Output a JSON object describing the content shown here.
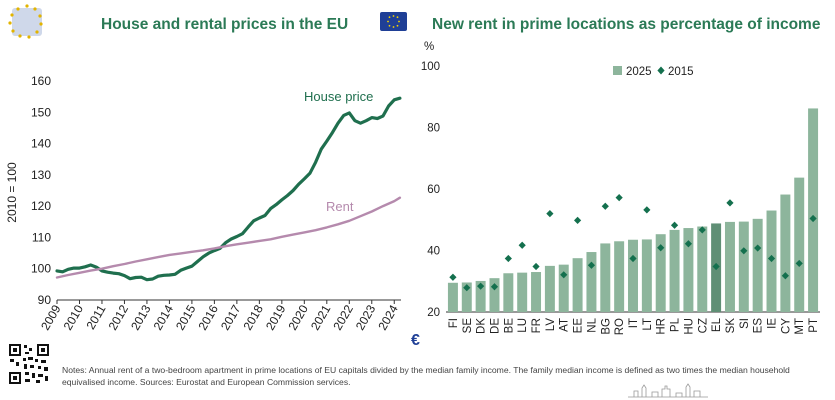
{
  "left_title": "House and rental prices in the EU",
  "right_title": "New rent in prime locations as percentage of income",
  "notes": "Notes: Annual rent of a two-bedroom apartment in prime locations of EU capitals divided by the median family income. The family median income is defined as two times the median household equivalised income. Sources: Eurostat and European Commission services.",
  "euro_symbol": "€",
  "colors": {
    "house": "#1f6f4e",
    "rent": "#b58aad",
    "bar": "#8db59c",
    "bar_highlight": "#5f8f75",
    "diamond": "#14704e",
    "title": "#2b7a56",
    "flag": "#1f3f96"
  },
  "icons": [
    "eu-logo-icon",
    "eu-flag-icon",
    "qr-code-icon",
    "euro-icon",
    "skyline-icon"
  ],
  "chart_data": [
    {
      "type": "line",
      "title": "House and rental prices in the EU",
      "ylabel": "2010 = 100",
      "xlabel": "",
      "ylim": [
        90,
        160
      ],
      "xlim": [
        2009,
        2024.3
      ],
      "grid": false,
      "yticks": [
        "90",
        "100",
        "110",
        "120",
        "130",
        "140",
        "150",
        "160"
      ],
      "xticks": [
        "2009",
        "2010",
        "2011",
        "2012",
        "2013",
        "2014",
        "2015",
        "2016",
        "2017",
        "2018",
        "2019",
        "2020",
        "2021",
        "2022",
        "2023",
        "2024"
      ],
      "series": [
        {
          "name": "House price",
          "x": [
            2009,
            2009.25,
            2009.5,
            2009.75,
            2010,
            2010.25,
            2010.5,
            2010.75,
            2011,
            2011.25,
            2011.5,
            2011.75,
            2012,
            2012.25,
            2012.5,
            2012.75,
            2013,
            2013.25,
            2013.5,
            2013.75,
            2014,
            2014.25,
            2014.5,
            2014.75,
            2015,
            2015.25,
            2015.5,
            2015.75,
            2016,
            2016.25,
            2016.5,
            2016.75,
            2017,
            2017.25,
            2017.5,
            2017.75,
            2018,
            2018.25,
            2018.5,
            2018.75,
            2019,
            2019.25,
            2019.5,
            2019.75,
            2020,
            2020.25,
            2020.5,
            2020.75,
            2021,
            2021.25,
            2021.5,
            2021.75,
            2022,
            2022.25,
            2022.5,
            2022.75,
            2023,
            2023.25,
            2023.5,
            2023.75,
            2024,
            2024.25
          ],
          "values": [
            99.3,
            99,
            99.8,
            100.2,
            100.2,
            100.6,
            101.2,
            100.5,
            99.3,
            98.9,
            98.6,
            98.4,
            97.8,
            96.8,
            97.2,
            97.3,
            96.5,
            96.7,
            97.6,
            97.9,
            98,
            98.2,
            99.5,
            100.2,
            100.8,
            102.3,
            103.8,
            105,
            105.8,
            106.5,
            108.3,
            109.5,
            110.3,
            111.2,
            113.3,
            115.3,
            116.2,
            117,
            119.2,
            120.5,
            122,
            123.4,
            125,
            127,
            128.7,
            130.5,
            134,
            138.2,
            140.8,
            143.5,
            146.5,
            149,
            149.8,
            147.3,
            146.5,
            147.3,
            148.3,
            148,
            148.8,
            152,
            154,
            154.5
          ]
        },
        {
          "name": "Rent",
          "x": [
            2009,
            2009.5,
            2010,
            2010.5,
            2011,
            2011.5,
            2012,
            2012.5,
            2013,
            2013.5,
            2014,
            2014.5,
            2015,
            2015.5,
            2016,
            2016.5,
            2017,
            2017.5,
            2018,
            2018.5,
            2019,
            2019.5,
            2020,
            2020.5,
            2021,
            2021.5,
            2022,
            2022.5,
            2023,
            2023.5,
            2024,
            2024.25
          ],
          "values": [
            97.2,
            98,
            98.7,
            99.4,
            100,
            100.8,
            101.5,
            102.3,
            103,
            103.7,
            104.4,
            104.9,
            105.4,
            105.9,
            106.5,
            107.2,
            107.8,
            108.3,
            108.9,
            109.4,
            110.2,
            110.9,
            111.6,
            112.3,
            113.2,
            114.2,
            115.3,
            116.8,
            118.3,
            120,
            121.6,
            122.7
          ]
        }
      ]
    },
    {
      "type": "bar",
      "title": "New rent in prime locations as percentage of income",
      "ylabel": "%",
      "xlabel": "",
      "ylim": [
        20,
        100
      ],
      "yticks": [
        "20",
        "40",
        "60",
        "80",
        "100"
      ],
      "legend_position": "top",
      "grid": false,
      "categories": [
        "FI",
        "SE",
        "DK",
        "DE",
        "BE",
        "LU",
        "FR",
        "LV",
        "AT",
        "EE",
        "NL",
        "BG",
        "RO",
        "IT",
        "LT",
        "HR",
        "PL",
        "HU",
        "CZ",
        "EL",
        "SK",
        "SI",
        "ES",
        "IE",
        "CY",
        "MT",
        "PT"
      ],
      "highlight": "EL",
      "series": [
        {
          "name": "2025",
          "kind": "bar",
          "values": [
            29.5,
            29.6,
            30.1,
            31,
            32.6,
            32.8,
            33,
            35,
            35.4,
            37.5,
            39.5,
            42.3,
            43,
            43.5,
            43.6,
            45.3,
            46.7,
            47.3,
            47.8,
            48.8,
            49.3,
            49.4,
            50.3,
            53,
            58.2,
            63.7,
            86.2
          ]
        },
        {
          "name": "2015",
          "kind": "diamond",
          "values": [
            31.3,
            27.9,
            28.4,
            28.2,
            37.4,
            41.7,
            34.8,
            52,
            32.1,
            49.8,
            35.2,
            54.4,
            57.2,
            37.4,
            53.2,
            40.9,
            48.2,
            42.2,
            46.7,
            34.8,
            55.5,
            39.9,
            40.8,
            37.4,
            31.8,
            35.8,
            50.4
          ]
        }
      ]
    }
  ]
}
